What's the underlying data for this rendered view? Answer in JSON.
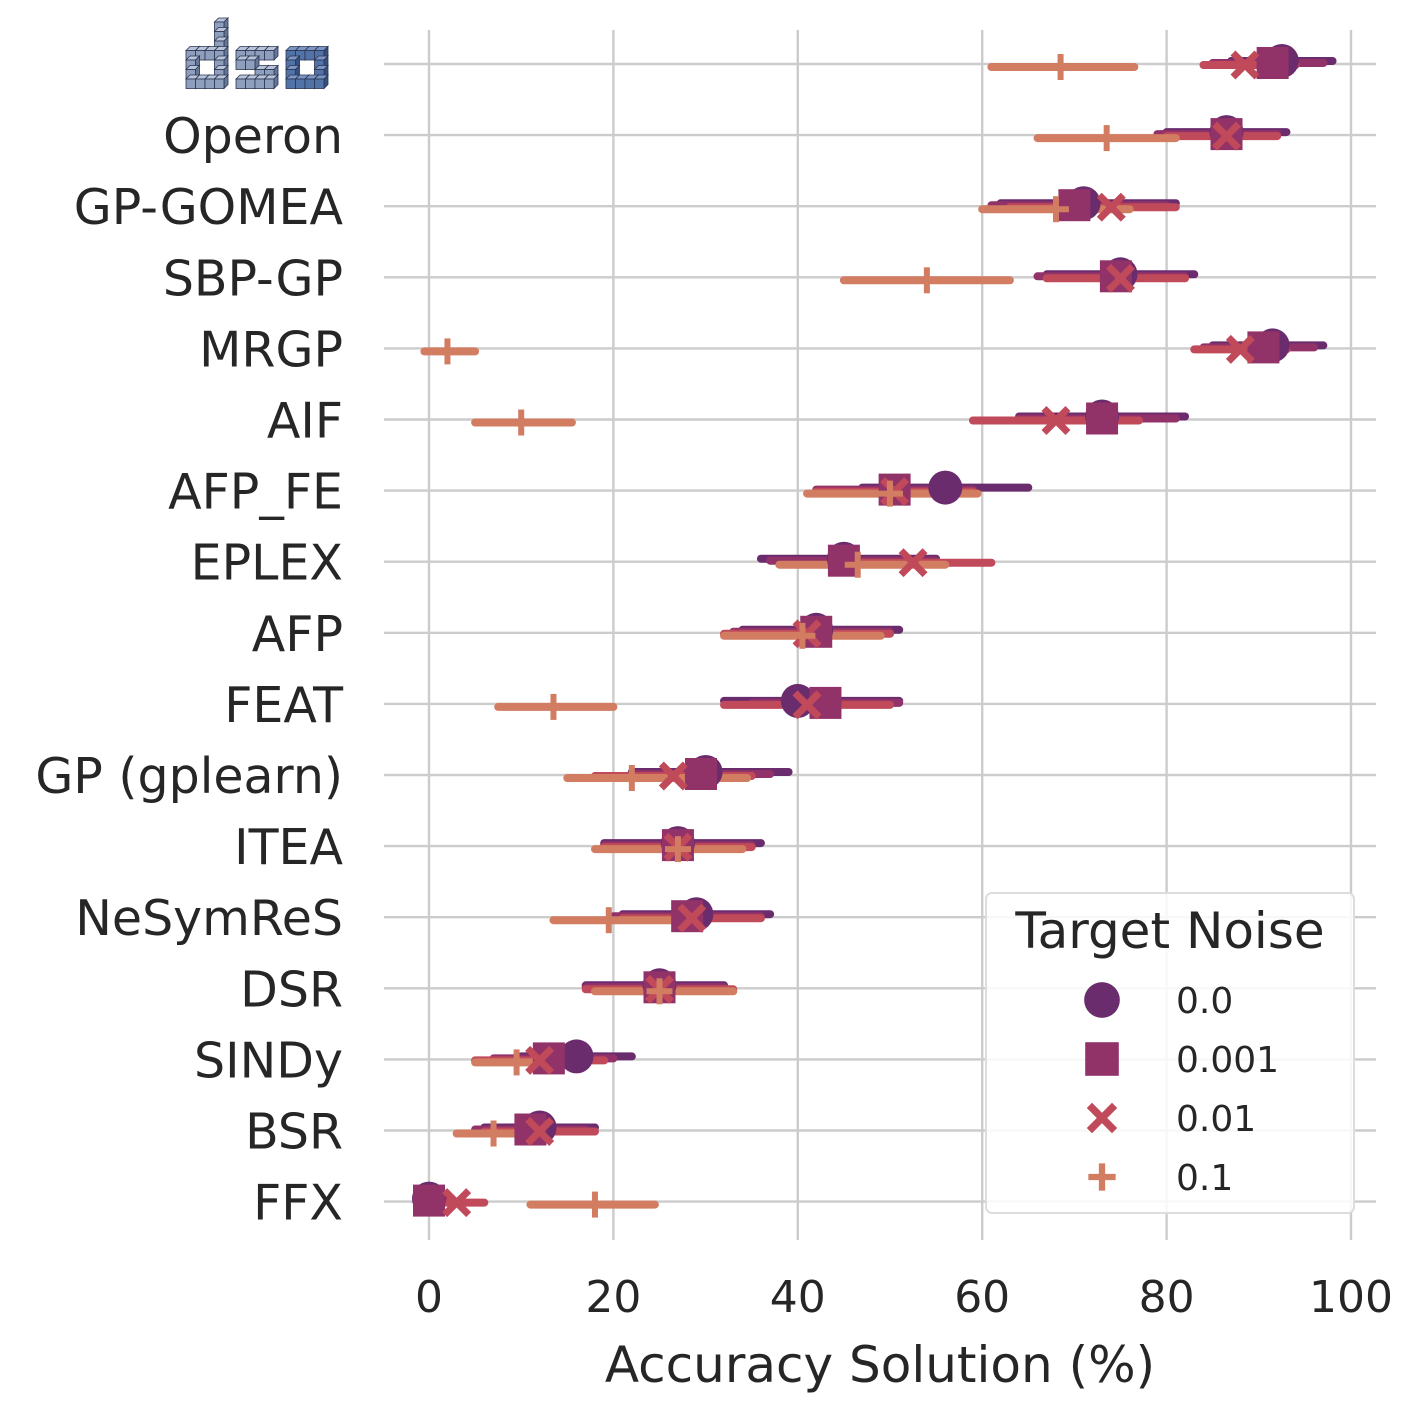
{
  "chart_data": {
    "type": "dot-errorbar",
    "title": "",
    "xlabel": "Accuracy Solution (%)",
    "ylabel": "",
    "xlim": [
      -5,
      102
    ],
    "xticks": [
      0,
      20,
      40,
      60,
      80,
      100
    ],
    "grid": true,
    "legend": {
      "title": "Target Noise",
      "placement": "bottom-right",
      "items": [
        {
          "label": "0.0",
          "marker": "circle",
          "color": "#6B2C6E"
        },
        {
          "label": "0.001",
          "marker": "square",
          "color": "#913268"
        },
        {
          "label": "0.01",
          "marker": "x",
          "color": "#C04A5A"
        },
        {
          "label": "0.1",
          "marker": "plus",
          "color": "#D27C62"
        }
      ]
    },
    "top_entry_logo": {
      "name": "dso-logo",
      "text": "dso"
    },
    "categories": [
      "dso",
      "Operon",
      "GP-GOMEA",
      "SBP-GP",
      "MRGP",
      "AIF",
      "AFP_FE",
      "EPLEX",
      "AFP",
      "FEAT",
      "GP (gplearn)",
      "ITEA",
      "NeSymReS",
      "DSR",
      "SINDy",
      "BSR",
      "FFX"
    ],
    "series": [
      {
        "name": "0.0",
        "marker": "circle",
        "color": "#6B2C6E",
        "values": [
          92.5,
          86.5,
          71,
          75,
          91.5,
          73,
          56,
          45,
          42,
          40,
          30,
          27,
          29,
          25,
          16,
          12,
          0
        ],
        "ci_low": [
          87,
          80,
          62,
          67,
          85,
          64,
          47,
          36,
          34,
          32,
          22,
          19,
          21,
          17,
          10,
          6,
          -1
        ],
        "ci_high": [
          98,
          93,
          81,
          83,
          97,
          82,
          65,
          55,
          51,
          51,
          39,
          36,
          37,
          32,
          22,
          18,
          2
        ]
      },
      {
        "name": "0.001",
        "marker": "square",
        "color": "#913268",
        "values": [
          91.5,
          86.5,
          70,
          74.5,
          90.5,
          73,
          50.5,
          45,
          42,
          43,
          29.5,
          27,
          28,
          25,
          13,
          11,
          0
        ],
        "ci_low": [
          85,
          79,
          61,
          66,
          84,
          64,
          42,
          37,
          33,
          35,
          22,
          19,
          20,
          17,
          7,
          5,
          -1
        ],
        "ci_high": [
          97,
          92,
          80,
          82,
          96,
          81,
          59,
          55,
          50,
          51,
          37,
          35,
          36,
          32,
          20,
          17,
          2
        ]
      },
      {
        "name": "0.01",
        "marker": "x",
        "color": "#C04A5A",
        "values": [
          88.5,
          86.5,
          74,
          75,
          88,
          68,
          50.5,
          52.5,
          41,
          41,
          26.5,
          27,
          28.5,
          25,
          12,
          12,
          3
        ],
        "ci_low": [
          84,
          80,
          63,
          67,
          83,
          59,
          42,
          44,
          32,
          32,
          18,
          19,
          21,
          17,
          5,
          6,
          0
        ],
        "ci_high": [
          94,
          92,
          81,
          82,
          93,
          77,
          59,
          61,
          50,
          50,
          35,
          35,
          36,
          33,
          19,
          18,
          6
        ]
      },
      {
        "name": "0.1",
        "marker": "plus",
        "color": "#D27C62",
        "values": [
          68.5,
          73.5,
          68,
          54,
          2,
          10,
          50,
          46.5,
          40.5,
          13.5,
          22,
          27,
          19.5,
          25,
          9.5,
          7,
          18
        ],
        "ci_low": [
          61,
          66,
          60,
          45,
          -0.5,
          5,
          41,
          38,
          32,
          7.5,
          15,
          18,
          13.5,
          18,
          5,
          3,
          11
        ],
        "ci_high": [
          76.5,
          81,
          76,
          63,
          5,
          15.5,
          59.5,
          56,
          49,
          20,
          34.5,
          34,
          29,
          33,
          14.5,
          12,
          24.5
        ]
      }
    ]
  }
}
